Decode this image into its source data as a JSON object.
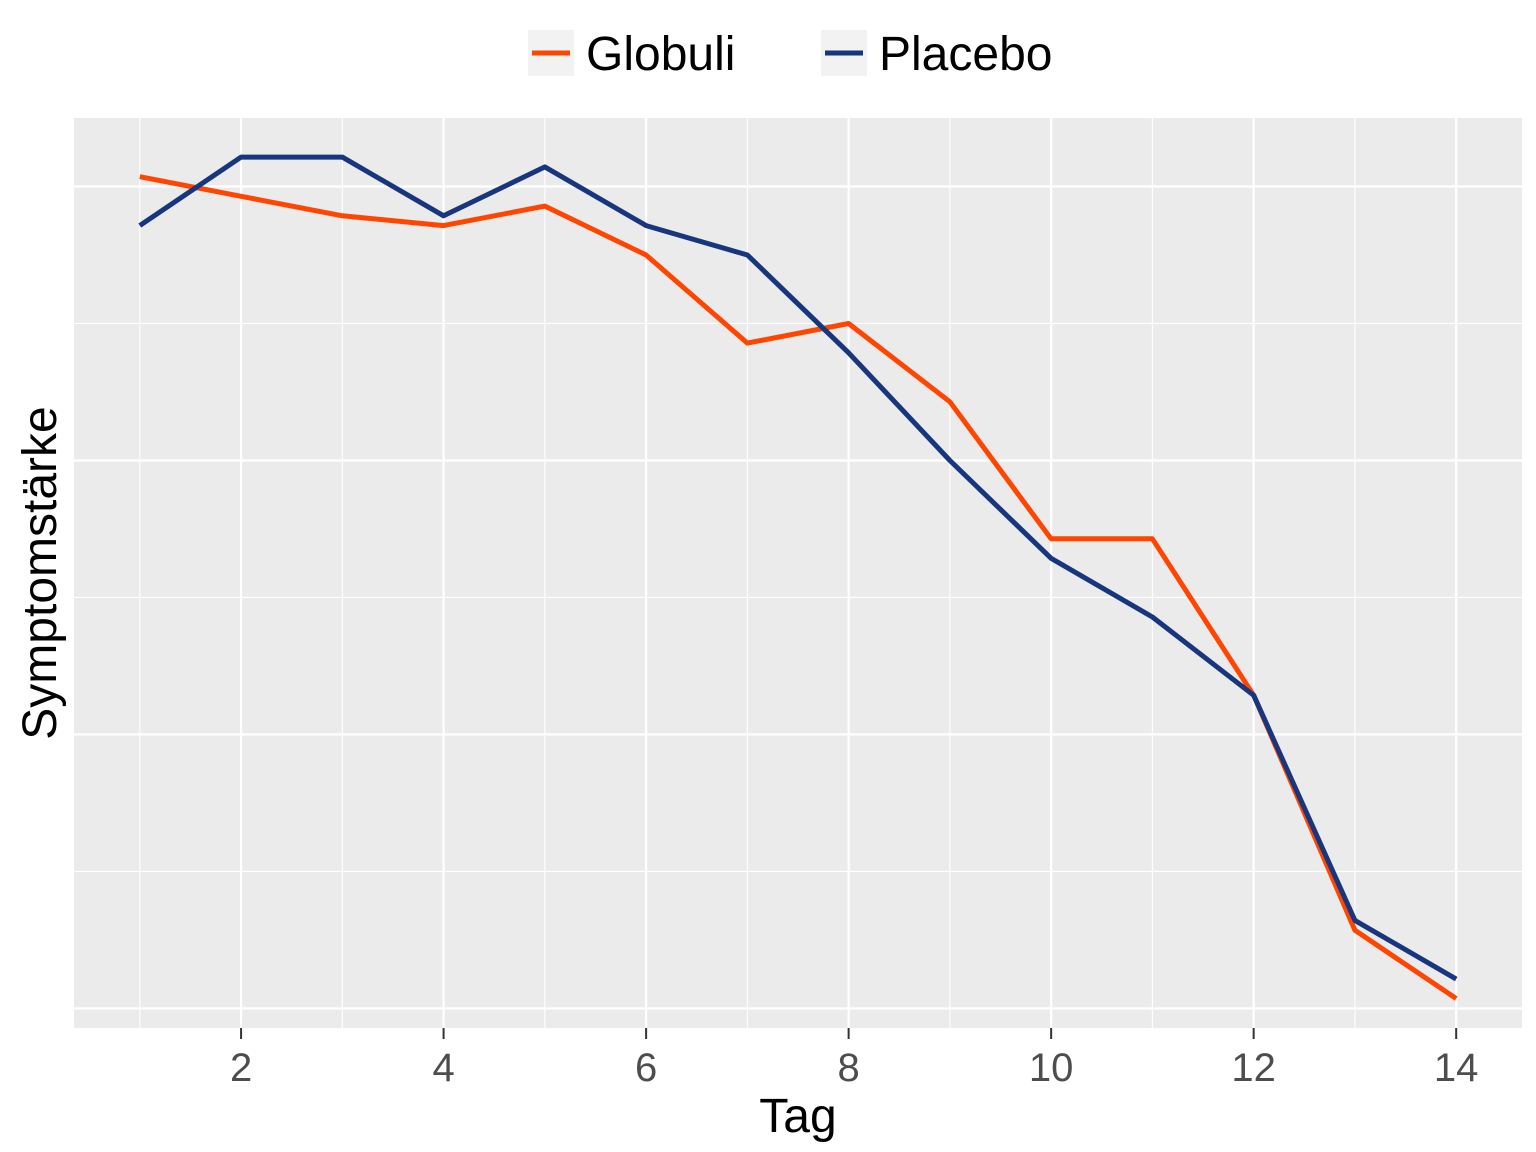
{
  "chart_data": {
    "type": "line",
    "x": [
      1,
      2,
      3,
      4,
      5,
      6,
      7,
      8,
      9,
      10,
      11,
      12,
      13,
      14
    ],
    "series": [
      {
        "name": "Globuli",
        "color": "#FF4500",
        "values": [
          0.87,
          0.85,
          0.83,
          0.82,
          0.84,
          0.79,
          0.7,
          0.72,
          0.64,
          0.5,
          0.5,
          0.34,
          0.1,
          0.03
        ]
      },
      {
        "name": "Placebo",
        "color": "#17367E",
        "values": [
          0.82,
          0.89,
          0.89,
          0.83,
          0.88,
          0.82,
          0.79,
          0.69,
          0.58,
          0.48,
          0.42,
          0.34,
          0.11,
          0.05
        ]
      }
    ],
    "xlabel": "Tag",
    "ylabel": "Symptomstärke",
    "x_ticks": [
      2,
      4,
      6,
      8,
      10,
      12,
      14
    ],
    "xlim": [
      0.35,
      14.65
    ],
    "ylim": [
      0,
      0.93
    ],
    "y_gridlines": [
      0.02,
      0.16,
      0.3,
      0.44,
      0.58,
      0.72,
      0.86
    ],
    "y_tick_labels_shown": false,
    "grid": true,
    "legend_position": "top",
    "panel_background": "#EBEBEB",
    "gridline_color": "#FFFFFF"
  }
}
